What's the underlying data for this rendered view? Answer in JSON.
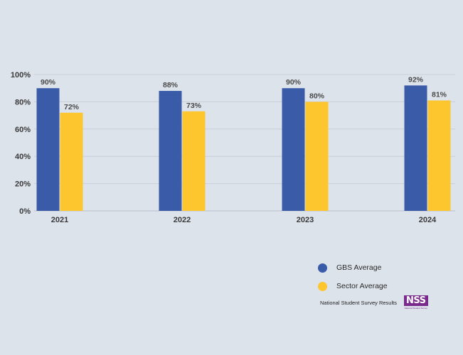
{
  "chart_data": {
    "type": "bar",
    "categories": [
      "2021",
      "2022",
      "2023",
      "2024"
    ],
    "series": [
      {
        "name": "GBS Average",
        "values": [
          90,
          88,
          90,
          92
        ],
        "labels": [
          "90%",
          "88%",
          "90%",
          "92%"
        ],
        "color": "#3a5ba8"
      },
      {
        "name": "Sector Average",
        "values": [
          72,
          73,
          80,
          81
        ],
        "labels": [
          "72%",
          "73%",
          "80%",
          "81%"
        ],
        "color": "#fdc52e"
      }
    ],
    "ylim": [
      0,
      100
    ],
    "yticks": [
      "0%",
      "20%",
      "40%",
      "60%",
      "80%",
      "100%"
    ],
    "ytick_values": [
      0,
      20,
      40,
      60,
      80,
      100
    ],
    "grid": true,
    "legend_position": "bottom-right"
  },
  "footer": {
    "text": "National Student Survey Results",
    "logo_text": "NSS",
    "logo_subtext": "National Student Survey"
  },
  "colors": {
    "background": "#dde3eb",
    "gridline": "#c9d0da",
    "logo": "#7a2a8c"
  }
}
